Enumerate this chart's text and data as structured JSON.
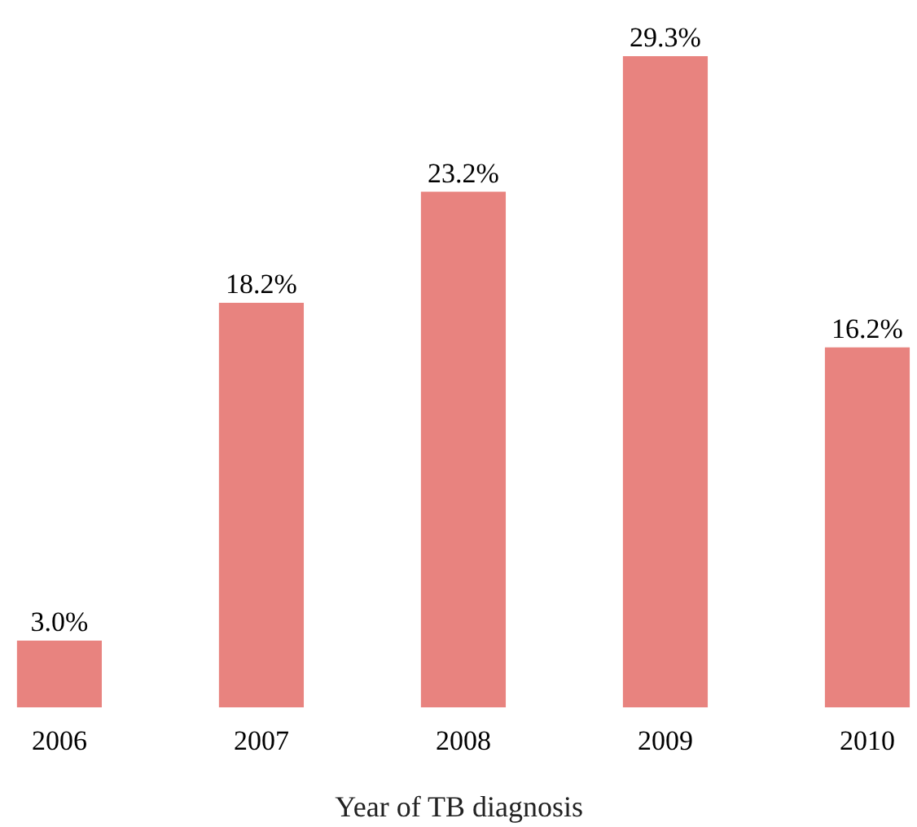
{
  "chart_data": {
    "type": "bar",
    "xlabel": "Year of TB diagnosis",
    "categories": [
      "2006",
      "2007",
      "2008",
      "2009",
      "2010"
    ],
    "values": [
      3.0,
      18.2,
      23.2,
      29.3,
      16.2
    ],
    "value_labels": [
      "3.0%",
      "18.2%",
      "23.2%",
      "29.3%",
      "16.2%"
    ],
    "color": "#e8837f",
    "grid": false
  }
}
